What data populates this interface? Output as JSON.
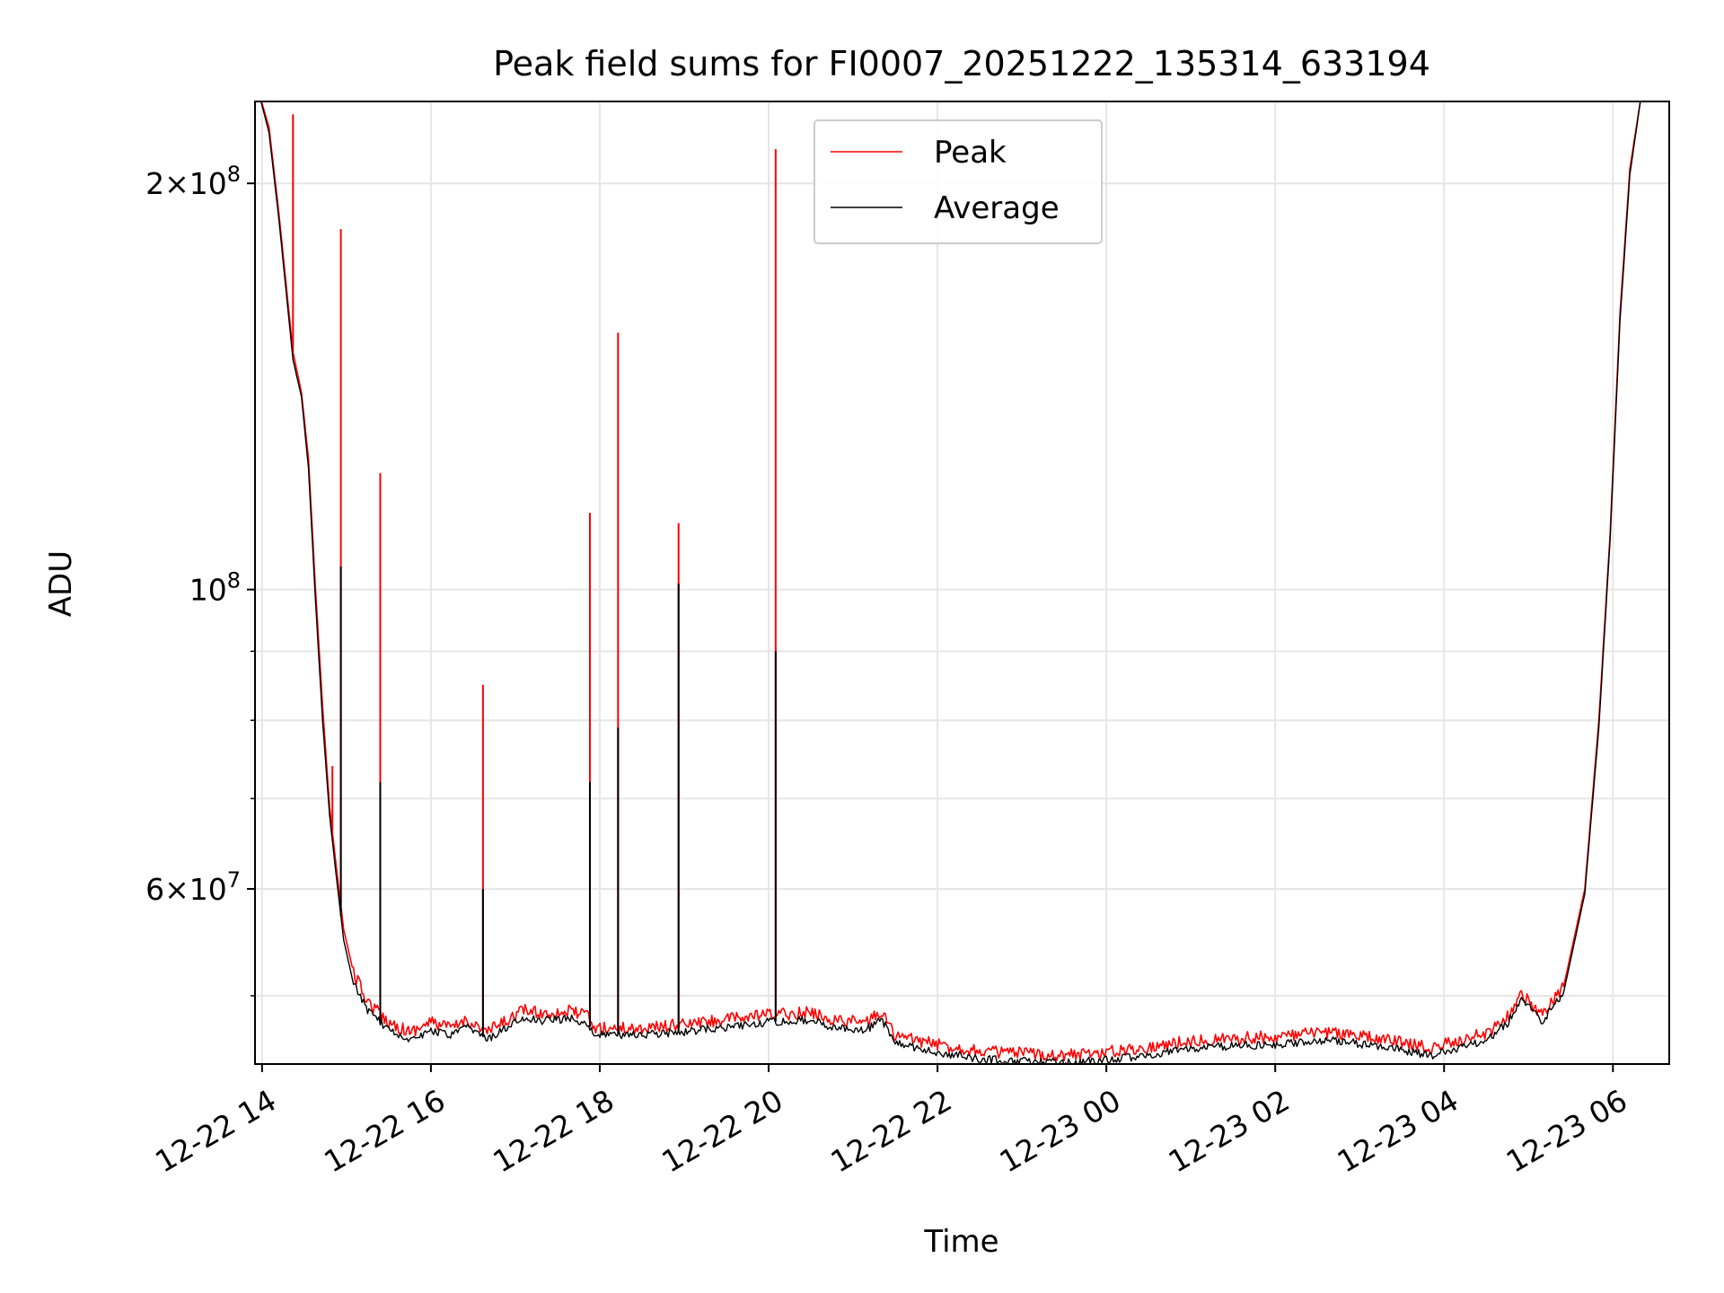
{
  "chart_data": {
    "type": "line",
    "title": "Peak field sums for FI0007_20251222_135314_633194",
    "xlabel": "Time",
    "ylabel": "ADU",
    "y_scale": "log",
    "ylim": [
      44500000,
      230000000
    ],
    "xlim": [
      "2025-12-22 13:55",
      "2025-12-23 06:40"
    ],
    "grid": true,
    "legend_position": "top-center",
    "x_ticks": [
      {
        "t": "2025-12-22 14:00",
        "label": "12-22 14"
      },
      {
        "t": "2025-12-22 16:00",
        "label": "12-22 16"
      },
      {
        "t": "2025-12-22 18:00",
        "label": "12-22 18"
      },
      {
        "t": "2025-12-22 20:00",
        "label": "12-22 20"
      },
      {
        "t": "2025-12-22 22:00",
        "label": "12-22 22"
      },
      {
        "t": "2025-12-23 00:00",
        "label": "12-23 00"
      },
      {
        "t": "2025-12-23 02:00",
        "label": "12-23 02"
      },
      {
        "t": "2025-12-23 04:00",
        "label": "12-23 04"
      },
      {
        "t": "2025-12-23 06:00",
        "label": "12-23 06"
      }
    ],
    "y_major_ticks": [
      {
        "value": 100000000,
        "label": "10^8"
      },
      {
        "value": 200000000,
        "label": "2×10^8"
      },
      {
        "value": 60000000,
        "label": "6×10^7"
      }
    ],
    "y_minor_ticks": [
      50000000,
      70000000,
      80000000,
      90000000
    ],
    "series": [
      {
        "name": "Peak",
        "color": "#ff0000",
        "points": [
          [
            "2025-12-22 13:57",
            235000000
          ],
          [
            "2025-12-22 14:05",
            220000000
          ],
          [
            "2025-12-22 14:12",
            190000000
          ],
          [
            "2025-12-22 14:22",
            150000000
          ],
          [
            "2025-12-22 14:28",
            140000000
          ],
          [
            "2025-12-22 14:33",
            125000000
          ],
          [
            "2025-12-22 14:38",
            100000000
          ],
          [
            "2025-12-22 14:43",
            82000000
          ],
          [
            "2025-12-22 14:48",
            69000000
          ],
          [
            "2025-12-22 14:53",
            62000000
          ],
          [
            "2025-12-22 14:58",
            56000000
          ],
          [
            "2025-12-22 15:05",
            52000000
          ],
          [
            "2025-12-22 15:15",
            49500000
          ],
          [
            "2025-12-22 15:30",
            47800000
          ],
          [
            "2025-12-22 15:45",
            47000000
          ],
          [
            "2025-12-22 16:00",
            47800000
          ],
          [
            "2025-12-22 16:15",
            47300000
          ],
          [
            "2025-12-22 16:25",
            48000000
          ],
          [
            "2025-12-22 16:40",
            47000000
          ],
          [
            "2025-12-22 16:55",
            48000000
          ],
          [
            "2025-12-22 17:05",
            48800000
          ],
          [
            "2025-12-22 17:20",
            48500000
          ],
          [
            "2025-12-22 17:40",
            48700000
          ],
          [
            "2025-12-22 17:52",
            48300000
          ],
          [
            "2025-12-22 17:55",
            47300000
          ],
          [
            "2025-12-22 18:30",
            47300000
          ],
          [
            "2025-12-22 19:00",
            47600000
          ],
          [
            "2025-12-22 19:30",
            48000000
          ],
          [
            "2025-12-22 20:00",
            48400000
          ],
          [
            "2025-12-22 20:30",
            48600000
          ],
          [
            "2025-12-22 20:45",
            48000000
          ],
          [
            "2025-12-22 21:10",
            47800000
          ],
          [
            "2025-12-22 21:20",
            48700000
          ],
          [
            "2025-12-22 21:30",
            46700000
          ],
          [
            "2025-12-22 22:00",
            46000000
          ],
          [
            "2025-12-22 22:30",
            45500000
          ],
          [
            "2025-12-22 23:00",
            45300000
          ],
          [
            "2025-12-22 23:30",
            45200000
          ],
          [
            "2025-12-23 00:00",
            45400000
          ],
          [
            "2025-12-23 00:30",
            45800000
          ],
          [
            "2025-12-23 01:00",
            46300000
          ],
          [
            "2025-12-23 01:30",
            46500000
          ],
          [
            "2025-12-23 02:00",
            46600000
          ],
          [
            "2025-12-23 02:40",
            47000000
          ],
          [
            "2025-12-23 03:10",
            46500000
          ],
          [
            "2025-12-23 03:30",
            46200000
          ],
          [
            "2025-12-23 03:50",
            45700000
          ],
          [
            "2025-12-23 04:10",
            46300000
          ],
          [
            "2025-12-23 04:30",
            46900000
          ],
          [
            "2025-12-23 04:45",
            48200000
          ],
          [
            "2025-12-23 04:55",
            50200000
          ],
          [
            "2025-12-23 05:10",
            48300000
          ],
          [
            "2025-12-23 05:25",
            50800000
          ],
          [
            "2025-12-23 05:40",
            60000000
          ],
          [
            "2025-12-23 05:50",
            80000000
          ],
          [
            "2025-12-23 05:58",
            110000000
          ],
          [
            "2025-12-23 06:05",
            160000000
          ],
          [
            "2025-12-23 06:12",
            205000000
          ],
          [
            "2025-12-23 06:20",
            232000000
          ]
        ],
        "spikes": [
          {
            "t": "2025-12-22 14:22",
            "value": 225000000
          },
          {
            "t": "2025-12-22 14:50",
            "value": 74000000
          },
          {
            "t": "2025-12-22 14:56",
            "value": 185000000
          },
          {
            "t": "2025-12-22 15:24",
            "value": 122000000
          },
          {
            "t": "2025-12-22 16:37",
            "value": 85000000
          },
          {
            "t": "2025-12-22 17:53",
            "value": 114000000
          },
          {
            "t": "2025-12-22 18:13",
            "value": 155000000
          },
          {
            "t": "2025-12-22 18:56",
            "value": 112000000
          },
          {
            "t": "2025-12-22 20:05",
            "value": 212000000
          }
        ]
      },
      {
        "name": "Average",
        "color": "#000000",
        "points": [
          [
            "2025-12-22 13:57",
            235000000
          ],
          [
            "2025-12-22 14:05",
            218000000
          ],
          [
            "2025-12-22 14:12",
            188000000
          ],
          [
            "2025-12-22 14:22",
            148000000
          ],
          [
            "2025-12-22 14:28",
            139000000
          ],
          [
            "2025-12-22 14:33",
            123000000
          ],
          [
            "2025-12-22 14:38",
            98000000
          ],
          [
            "2025-12-22 14:43",
            80000000
          ],
          [
            "2025-12-22 14:48",
            68000000
          ],
          [
            "2025-12-22 14:53",
            61000000
          ],
          [
            "2025-12-22 14:58",
            55000000
          ],
          [
            "2025-12-22 15:05",
            51000000
          ],
          [
            "2025-12-22 15:15",
            48800000
          ],
          [
            "2025-12-22 15:30",
            47200000
          ],
          [
            "2025-12-22 15:45",
            46400000
          ],
          [
            "2025-12-22 16:00",
            47100000
          ],
          [
            "2025-12-22 16:15",
            46700000
          ],
          [
            "2025-12-22 16:25",
            47400000
          ],
          [
            "2025-12-22 16:40",
            46400000
          ],
          [
            "2025-12-22 16:55",
            47400000
          ],
          [
            "2025-12-22 17:05",
            48100000
          ],
          [
            "2025-12-22 17:20",
            47900000
          ],
          [
            "2025-12-22 17:40",
            48100000
          ],
          [
            "2025-12-22 17:52",
            47700000
          ],
          [
            "2025-12-22 17:55",
            46800000
          ],
          [
            "2025-12-22 18:30",
            46800000
          ],
          [
            "2025-12-22 19:00",
            47000000
          ],
          [
            "2025-12-22 19:30",
            47400000
          ],
          [
            "2025-12-22 20:00",
            47800000
          ],
          [
            "2025-12-22 20:30",
            48000000
          ],
          [
            "2025-12-22 20:45",
            47400000
          ],
          [
            "2025-12-22 21:10",
            47200000
          ],
          [
            "2025-12-22 21:20",
            48100000
          ],
          [
            "2025-12-22 21:30",
            46100000
          ],
          [
            "2025-12-22 22:00",
            45400000
          ],
          [
            "2025-12-22 22:30",
            44900000
          ],
          [
            "2025-12-22 23:00",
            44700000
          ],
          [
            "2025-12-22 23:30",
            44600000
          ],
          [
            "2025-12-23 00:00",
            44800000
          ],
          [
            "2025-12-23 00:30",
            45200000
          ],
          [
            "2025-12-23 01:00",
            45700000
          ],
          [
            "2025-12-23 01:30",
            45900000
          ],
          [
            "2025-12-23 02:00",
            46000000
          ],
          [
            "2025-12-23 02:40",
            46400000
          ],
          [
            "2025-12-23 03:10",
            45900000
          ],
          [
            "2025-12-23 03:30",
            45600000
          ],
          [
            "2025-12-23 03:50",
            45100000
          ],
          [
            "2025-12-23 04:10",
            45700000
          ],
          [
            "2025-12-23 04:30",
            46300000
          ],
          [
            "2025-12-23 04:45",
            47700000
          ],
          [
            "2025-12-23 04:55",
            49800000
          ],
          [
            "2025-12-23 05:10",
            47800000
          ],
          [
            "2025-12-23 05:25",
            50300000
          ],
          [
            "2025-12-23 05:40",
            59500000
          ],
          [
            "2025-12-23 05:50",
            79000000
          ],
          [
            "2025-12-23 05:58",
            109000000
          ],
          [
            "2025-12-23 06:05",
            158000000
          ],
          [
            "2025-12-23 06:12",
            203000000
          ],
          [
            "2025-12-23 06:20",
            232000000
          ]
        ],
        "spikes": [
          {
            "t": "2025-12-22 14:56",
            "value": 104000000
          },
          {
            "t": "2025-12-22 15:24",
            "value": 72000000
          },
          {
            "t": "2025-12-22 16:37",
            "value": 60000000
          },
          {
            "t": "2025-12-22 17:53",
            "value": 72000000
          },
          {
            "t": "2025-12-22 18:13",
            "value": 79000000
          },
          {
            "t": "2025-12-22 18:56",
            "value": 101000000
          },
          {
            "t": "2025-12-22 20:05",
            "value": 90000000
          }
        ]
      }
    ]
  }
}
